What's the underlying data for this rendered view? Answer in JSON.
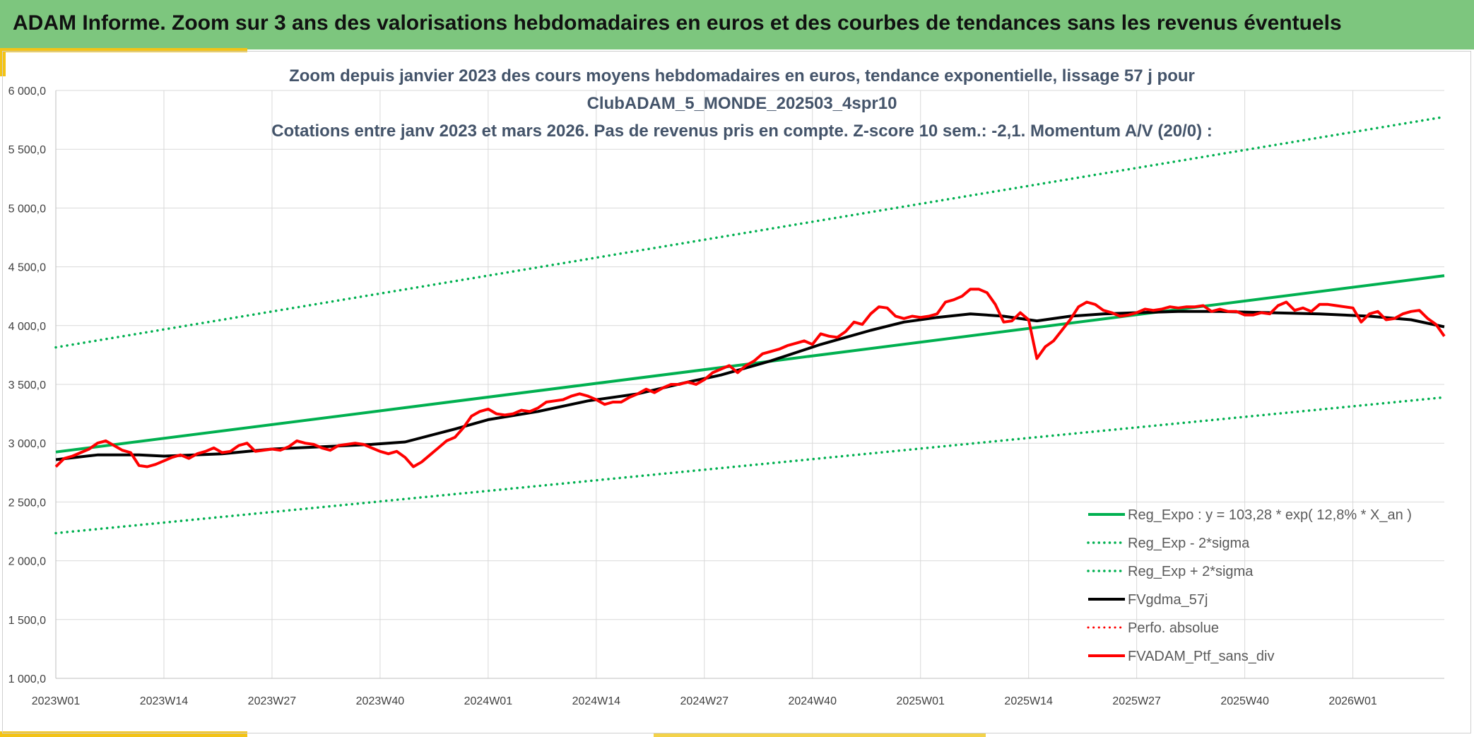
{
  "header": {
    "title": "ADAM Informe. Zoom sur 3 ans des valorisations hebdomadaires en euros et des courbes de tendances sans les revenus éventuels"
  },
  "colors": {
    "header_bg": "#7dc67e",
    "accent": "#f3c316",
    "regression": "#00b050",
    "smoothed": "#000000",
    "portfolio": "#ff0000",
    "title_text": "#44546a"
  },
  "chart_data": {
    "type": "line",
    "title_lines": [
      "Zoom depuis janvier 2023 des cours moyens hebdomadaires en euros, tendance exponentielle, lissage 57 j pour",
      "ClubADAM_5_MONDE_202503_4spr10",
      "Cotations entre janv 2023 et mars 2026. Pas de revenus pris en compte. Z-score 10 sem.: -2,1. Momentum A/V (20/0) :"
    ],
    "ylim": [
      1000,
      6000
    ],
    "y_ticks": [
      1000,
      1500,
      2000,
      2500,
      3000,
      3500,
      4000,
      4500,
      5000,
      5500,
      6000
    ],
    "y_tick_labels": [
      "1 000,0",
      "1 500,0",
      "2 000,0",
      "2 500,0",
      "3 000,0",
      "3 500,0",
      "4 000,0",
      "4 500,0",
      "5 000,0",
      "5 500,0",
      "6 000,0"
    ],
    "x_range": [
      0,
      167
    ],
    "x_ticks": [
      0,
      13,
      26,
      39,
      52,
      65,
      78,
      91,
      104,
      117,
      130,
      143,
      156
    ],
    "x_tick_labels": [
      "2023W01",
      "2023W14",
      "2023W27",
      "2023W40",
      "2024W01",
      "2024W14",
      "2024W27",
      "2024W40",
      "2025W01",
      "2025W14",
      "2025W27",
      "2025W40",
      "2026W01"
    ],
    "grid": true,
    "legend_position": "bottom-right",
    "series": [
      {
        "name": "Reg_Expo : y = 103,28 * exp( 12,8% *  X_an )",
        "style": "solid",
        "color": "#00b050",
        "width": 4,
        "points": [
          [
            0,
            2925
          ],
          [
            167,
            4425
          ]
        ]
      },
      {
        "name": "Reg_Exp - 2*sigma",
        "style": "dotted",
        "color": "#00b050",
        "width": 3.5,
        "points": [
          [
            0,
            2235
          ],
          [
            167,
            3390
          ]
        ]
      },
      {
        "name": "Reg_Exp + 2*sigma",
        "style": "dotted",
        "color": "#00b050",
        "width": 3.5,
        "points": [
          [
            0,
            3815
          ],
          [
            167,
            5775
          ]
        ]
      },
      {
        "name": "FVgdma_57j",
        "style": "solid",
        "color": "#000000",
        "width": 4,
        "points": [
          [
            0,
            2860
          ],
          [
            5,
            2900
          ],
          [
            10,
            2900
          ],
          [
            13,
            2890
          ],
          [
            20,
            2910
          ],
          [
            26,
            2950
          ],
          [
            32,
            2970
          ],
          [
            38,
            2990
          ],
          [
            42,
            3010
          ],
          [
            48,
            3120
          ],
          [
            52,
            3200
          ],
          [
            58,
            3270
          ],
          [
            64,
            3360
          ],
          [
            70,
            3420
          ],
          [
            76,
            3520
          ],
          [
            80,
            3580
          ],
          [
            86,
            3700
          ],
          [
            92,
            3840
          ],
          [
            98,
            3960
          ],
          [
            102,
            4030
          ],
          [
            106,
            4070
          ],
          [
            110,
            4100
          ],
          [
            114,
            4080
          ],
          [
            118,
            4040
          ],
          [
            122,
            4080
          ],
          [
            126,
            4100
          ],
          [
            130,
            4110
          ],
          [
            135,
            4120
          ],
          [
            140,
            4120
          ],
          [
            146,
            4110
          ],
          [
            152,
            4100
          ],
          [
            158,
            4080
          ],
          [
            163,
            4050
          ],
          [
            167,
            3990
          ]
        ]
      },
      {
        "name": "Perfo. absolue",
        "style": "dotted",
        "color": "#ff0000",
        "width": 3,
        "points": []
      },
      {
        "name": "FVADAM_Ptf_sans_div",
        "style": "solid",
        "color": "#ff0000",
        "width": 4,
        "points": [
          [
            0,
            2800
          ],
          [
            1,
            2870
          ],
          [
            2,
            2890
          ],
          [
            3,
            2920
          ],
          [
            4,
            2950
          ],
          [
            5,
            3000
          ],
          [
            6,
            3020
          ],
          [
            7,
            2980
          ],
          [
            8,
            2940
          ],
          [
            9,
            2920
          ],
          [
            10,
            2810
          ],
          [
            11,
            2800
          ],
          [
            12,
            2820
          ],
          [
            13,
            2850
          ],
          [
            14,
            2880
          ],
          [
            15,
            2900
          ],
          [
            16,
            2870
          ],
          [
            17,
            2910
          ],
          [
            18,
            2930
          ],
          [
            19,
            2960
          ],
          [
            20,
            2920
          ],
          [
            21,
            2930
          ],
          [
            22,
            2980
          ],
          [
            23,
            3000
          ],
          [
            24,
            2930
          ],
          [
            25,
            2940
          ],
          [
            26,
            2950
          ],
          [
            27,
            2940
          ],
          [
            28,
            2970
          ],
          [
            29,
            3020
          ],
          [
            30,
            3000
          ],
          [
            31,
            2990
          ],
          [
            32,
            2960
          ],
          [
            33,
            2940
          ],
          [
            34,
            2980
          ],
          [
            35,
            2990
          ],
          [
            36,
            3000
          ],
          [
            37,
            2990
          ],
          [
            38,
            2960
          ],
          [
            39,
            2930
          ],
          [
            40,
            2910
          ],
          [
            41,
            2930
          ],
          [
            42,
            2880
          ],
          [
            43,
            2800
          ],
          [
            44,
            2840
          ],
          [
            45,
            2900
          ],
          [
            46,
            2960
          ],
          [
            47,
            3020
          ],
          [
            48,
            3050
          ],
          [
            49,
            3130
          ],
          [
            50,
            3230
          ],
          [
            51,
            3270
          ],
          [
            52,
            3290
          ],
          [
            53,
            3250
          ],
          [
            54,
            3240
          ],
          [
            55,
            3250
          ],
          [
            56,
            3280
          ],
          [
            57,
            3270
          ],
          [
            58,
            3300
          ],
          [
            59,
            3350
          ],
          [
            60,
            3360
          ],
          [
            61,
            3370
          ],
          [
            62,
            3400
          ],
          [
            63,
            3420
          ],
          [
            64,
            3400
          ],
          [
            65,
            3370
          ],
          [
            66,
            3330
          ],
          [
            67,
            3350
          ],
          [
            68,
            3350
          ],
          [
            69,
            3390
          ],
          [
            70,
            3420
          ],
          [
            71,
            3460
          ],
          [
            72,
            3430
          ],
          [
            73,
            3470
          ],
          [
            74,
            3500
          ],
          [
            75,
            3500
          ],
          [
            76,
            3520
          ],
          [
            77,
            3500
          ],
          [
            78,
            3540
          ],
          [
            79,
            3600
          ],
          [
            80,
            3630
          ],
          [
            81,
            3660
          ],
          [
            82,
            3600
          ],
          [
            83,
            3660
          ],
          [
            84,
            3700
          ],
          [
            85,
            3760
          ],
          [
            86,
            3780
          ],
          [
            87,
            3800
          ],
          [
            88,
            3830
          ],
          [
            89,
            3850
          ],
          [
            90,
            3870
          ],
          [
            91,
            3840
          ],
          [
            92,
            3930
          ],
          [
            93,
            3910
          ],
          [
            94,
            3900
          ],
          [
            95,
            3950
          ],
          [
            96,
            4030
          ],
          [
            97,
            4010
          ],
          [
            98,
            4100
          ],
          [
            99,
            4160
          ],
          [
            100,
            4150
          ],
          [
            101,
            4080
          ],
          [
            102,
            4060
          ],
          [
            103,
            4080
          ],
          [
            104,
            4070
          ],
          [
            105,
            4080
          ],
          [
            106,
            4100
          ],
          [
            107,
            4200
          ],
          [
            108,
            4220
          ],
          [
            109,
            4250
          ],
          [
            110,
            4310
          ],
          [
            111,
            4310
          ],
          [
            112,
            4280
          ],
          [
            113,
            4180
          ],
          [
            114,
            4030
          ],
          [
            115,
            4040
          ],
          [
            116,
            4110
          ],
          [
            117,
            4050
          ],
          [
            118,
            3720
          ],
          [
            119,
            3820
          ],
          [
            120,
            3870
          ],
          [
            121,
            3960
          ],
          [
            122,
            4050
          ],
          [
            123,
            4160
          ],
          [
            124,
            4200
          ],
          [
            125,
            4180
          ],
          [
            126,
            4130
          ],
          [
            127,
            4110
          ],
          [
            128,
            4080
          ],
          [
            129,
            4090
          ],
          [
            130,
            4110
          ],
          [
            131,
            4140
          ],
          [
            132,
            4130
          ],
          [
            133,
            4140
          ],
          [
            134,
            4160
          ],
          [
            135,
            4150
          ],
          [
            136,
            4160
          ],
          [
            137,
            4160
          ],
          [
            138,
            4170
          ],
          [
            139,
            4120
          ],
          [
            140,
            4140
          ],
          [
            141,
            4120
          ],
          [
            142,
            4120
          ],
          [
            143,
            4090
          ],
          [
            144,
            4090
          ],
          [
            145,
            4110
          ],
          [
            146,
            4100
          ],
          [
            147,
            4170
          ],
          [
            148,
            4200
          ],
          [
            149,
            4130
          ],
          [
            150,
            4150
          ],
          [
            151,
            4120
          ],
          [
            152,
            4180
          ],
          [
            153,
            4180
          ],
          [
            154,
            4170
          ],
          [
            155,
            4160
          ],
          [
            156,
            4150
          ],
          [
            157,
            4030
          ],
          [
            158,
            4100
          ],
          [
            159,
            4120
          ],
          [
            160,
            4050
          ],
          [
            161,
            4060
          ],
          [
            162,
            4100
          ],
          [
            163,
            4120
          ],
          [
            164,
            4130
          ],
          [
            165,
            4060
          ],
          [
            166,
            4010
          ],
          [
            167,
            3910
          ]
        ]
      }
    ]
  }
}
